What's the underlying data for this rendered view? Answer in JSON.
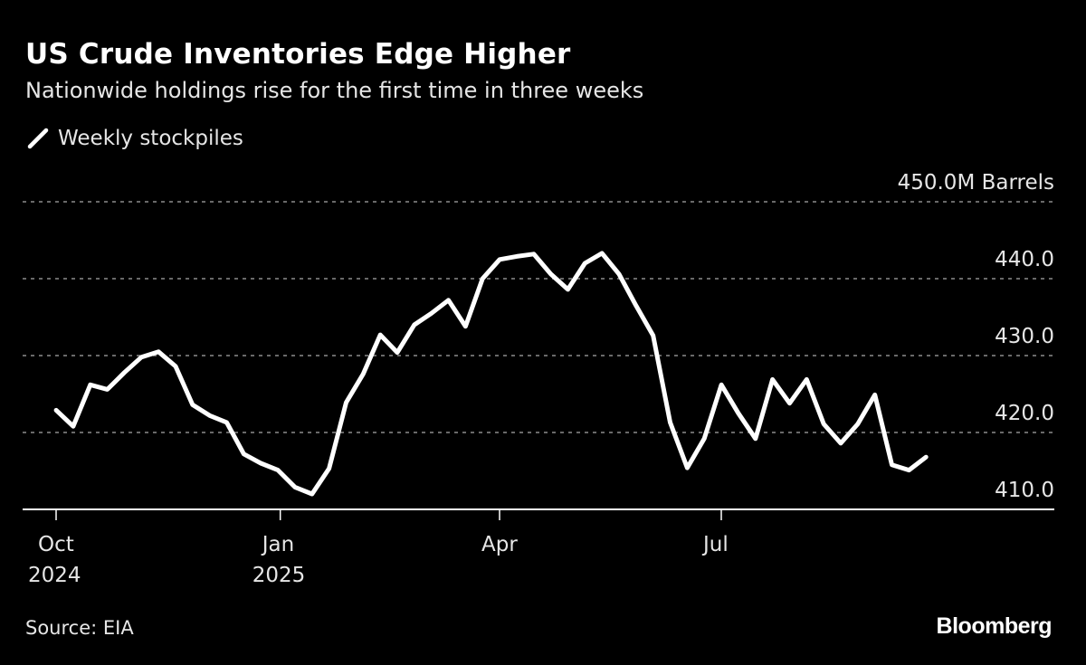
{
  "title": "US Crude Inventories Edge Higher",
  "subtitle": "Nationwide holdings rise for the first time in three weeks",
  "source": "Source: EIA",
  "logo": "Bloomberg",
  "colors": {
    "background": "#000000",
    "line": "#ffffff",
    "grid": "#8c8c8c"
  },
  "chart_data": {
    "type": "line",
    "legend": {
      "placement": "top-left",
      "entries": [
        "Weekly stockpiles"
      ]
    },
    "ylabel_unit": "M Barrels",
    "ylim": [
      410,
      450
    ],
    "yticks": [
      {
        "value": 450,
        "label": "450.0M Barrels"
      },
      {
        "value": 440,
        "label": "440.0"
      },
      {
        "value": 430,
        "label": "430.0"
      },
      {
        "value": 420,
        "label": "420.0"
      },
      {
        "value": 410,
        "label": "410.0"
      }
    ],
    "xlim": [
      "2024-09-23",
      "2025-10-28"
    ],
    "xticks": [
      {
        "date": "2024-10-01",
        "line1": "Oct",
        "line2": "2024"
      },
      {
        "date": "2025-01-01",
        "line1": "Jan",
        "line2": "2025"
      },
      {
        "date": "2025-04-01",
        "line1": "Apr",
        "line2": ""
      },
      {
        "date": "2025-07-01",
        "line1": "Jul",
        "line2": ""
      }
    ],
    "grid": true,
    "series": [
      {
        "name": "Weekly stockpiles",
        "start_date": "2024-10-04",
        "interval_days": 7,
        "values": [
          422.9,
          420.8,
          426.2,
          425.6,
          427.8,
          429.8,
          430.5,
          428.6,
          423.6,
          422.2,
          421.3,
          417.2,
          416.0,
          415.1,
          412.9,
          412.0,
          415.3,
          423.9,
          427.6,
          432.7,
          430.4,
          434.0,
          435.5,
          437.2,
          433.8,
          440.0,
          442.5,
          442.9,
          443.2,
          440.6,
          438.6,
          442.0,
          443.3,
          440.6,
          436.5,
          432.6,
          421.3,
          415.4,
          419.2,
          426.2,
          422.5,
          419.2,
          426.9,
          423.8,
          426.9,
          421.1,
          418.6,
          421.1,
          424.9,
          415.8,
          415.1,
          416.8
        ]
      }
    ]
  }
}
